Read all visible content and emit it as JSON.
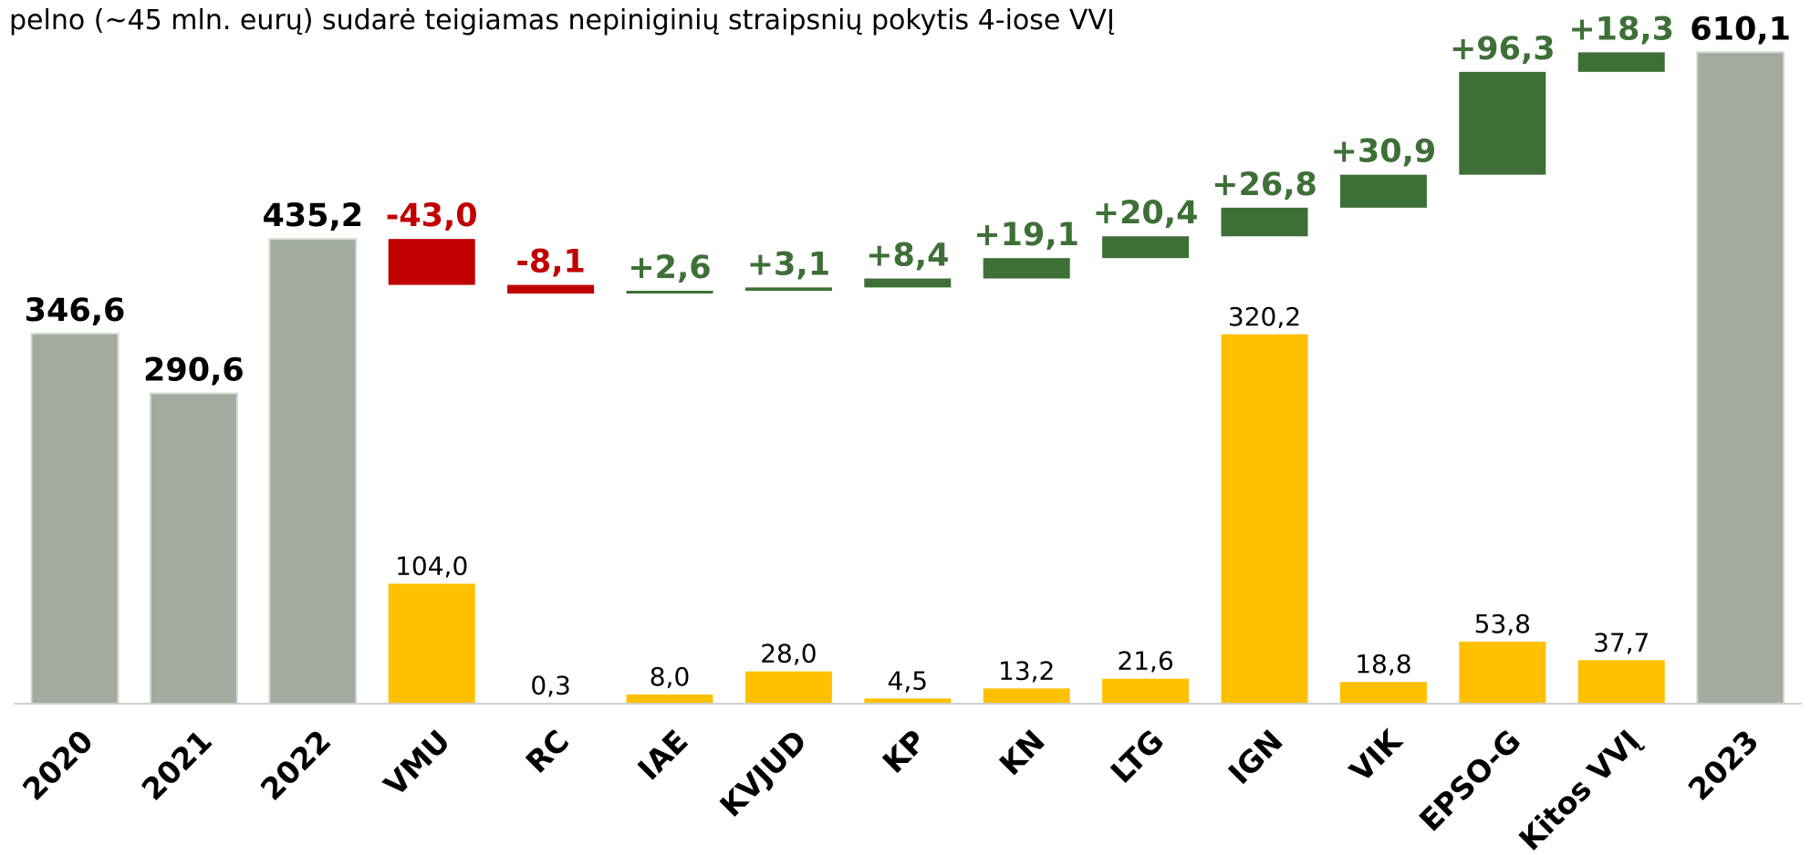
{
  "chart_data": {
    "type": "waterfall",
    "title": "pelno (~45 mln. eurų) sudarė teigiamas nepiniginių straipsnių pokytis 4-iose VVĮ",
    "categories": [
      "2020",
      "2021",
      "2022",
      "VMU",
      "RC",
      "IAE",
      "KVJUD",
      "KP",
      "KN",
      "LTG",
      "IGN",
      "VIK",
      "EPSO-G",
      "Kitos VVĮ",
      "2023"
    ],
    "measure": [
      "total",
      "total",
      "total",
      "relative",
      "relative",
      "relative",
      "relative",
      "relative",
      "relative",
      "relative",
      "relative",
      "relative",
      "relative",
      "relative",
      "total"
    ],
    "values": [
      346.6,
      290.6,
      435.2,
      -43.0,
      -8.1,
      2.6,
      3.1,
      8.4,
      19.1,
      20.4,
      26.8,
      30.9,
      96.3,
      18.3,
      610.1
    ],
    "value_labels": [
      "346,6",
      "290,6",
      "435,2",
      "-43,0",
      "-8,1",
      "+2,6",
      "+3,1",
      "+8,4",
      "+19,1",
      "+20,4",
      "+26,8",
      "+30,9",
      "+96,3",
      "+18,3",
      "610,1"
    ],
    "colors": {
      "total": "#a2ab9e",
      "increase": "#3e6f37",
      "decrease": "#c00000"
    },
    "ylim": [
      0,
      659
    ],
    "secondary": {
      "axis": "y2",
      "color": "#ffc000",
      "values": [
        null,
        null,
        null,
        104.0,
        0.3,
        8.0,
        28.0,
        4.5,
        13.2,
        21.6,
        320.2,
        18.8,
        53.8,
        37.7,
        null
      ],
      "value_labels": [
        null,
        null,
        null,
        "104,0",
        "0,3",
        "8,0",
        "28,0",
        "4,5",
        "13,2",
        "21,6",
        "320,2",
        "18,8",
        "53,8",
        "37,7",
        null
      ]
    },
    "y2lim": [
      0,
      610
    ]
  }
}
